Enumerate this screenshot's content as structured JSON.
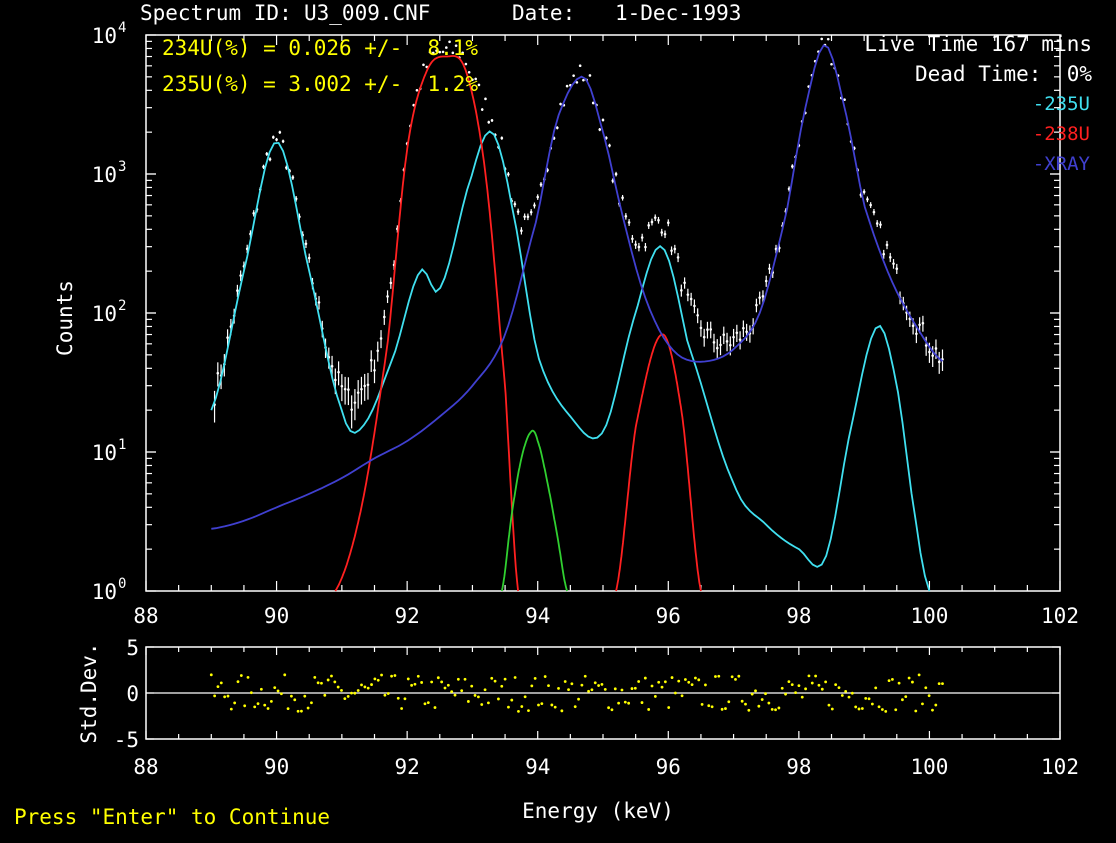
{
  "header": {
    "spectrum_label": "Spectrum ID:",
    "spectrum_id": "U3_009.CNF",
    "date_label": "Date:",
    "date": "1-Dec-1993"
  },
  "results": {
    "line1": "234U(%) = 0.026 +/-  8.1%",
    "line2": "235U(%) = 3.002 +/-  1.2%"
  },
  "info": {
    "live_time": "Live Time 167 mins",
    "dead_time": "Dead Time:  0%"
  },
  "legend": [
    "-235U",
    "-238U",
    "-XRAY"
  ],
  "colors": {
    "u235": "#40e0f0",
    "u238": "#ff2020",
    "xray": "#4040d0",
    "u234": "#30d030",
    "data": "#ffffff",
    "residual": "#ffff00",
    "text_yellow": "#ffff00"
  },
  "prompt": "Press \"Enter\" to Continue",
  "chart_data": [
    {
      "type": "line",
      "xlabel": "Energy (keV)",
      "ylabel": "Counts",
      "xlim": [
        88,
        102
      ],
      "ylim": [
        1,
        10000
      ],
      "yscale": "log",
      "x_ticks": [
        "88",
        "90",
        "92",
        "94",
        "96",
        "98",
        "100",
        "102"
      ],
      "y_ticks": [
        "10",
        "10",
        "10",
        "10",
        "10"
      ],
      "y_tick_exponents": [
        "0",
        "1",
        "2",
        "3",
        "4"
      ],
      "legend_position": "top-right",
      "series": [
        {
          "name": "235U",
          "x": [
            89.0,
            89.5,
            90.0,
            90.5,
            91.0,
            91.3,
            91.8,
            92.2,
            92.5,
            93.0,
            93.3,
            93.6,
            94.0,
            94.5,
            95.0,
            95.5,
            95.9,
            96.3,
            97.0,
            97.5,
            98.0,
            98.4,
            98.8,
            99.2,
            99.5,
            99.8,
            100.0
          ],
          "y": [
            20,
            200,
            1700,
            200,
            20,
            15,
            50,
            200,
            150,
            1000,
            2000,
            600,
            50,
            18,
            14,
            100,
            300,
            60,
            6,
            3,
            2,
            1.7,
            15,
            80,
            30,
            3,
            1
          ]
        },
        {
          "name": "238U",
          "x": [
            90.9,
            91.3,
            91.7,
            92.0,
            92.3,
            92.6,
            92.9,
            93.2,
            93.5,
            93.7,
            95.2,
            95.5,
            95.9,
            96.2,
            96.5
          ],
          "y": [
            1,
            4,
            60,
            1500,
            5500,
            7000,
            5500,
            1000,
            30,
            1,
            1,
            15,
            70,
            20,
            1
          ]
        },
        {
          "name": "XRAY",
          "x": [
            89.0,
            89.5,
            90.0,
            90.5,
            91.0,
            91.5,
            92.0,
            92.5,
            93.0,
            93.5,
            94.0,
            94.3,
            94.7,
            95.0,
            95.3,
            95.6,
            95.9,
            96.2,
            96.6,
            97.0,
            97.4,
            97.8,
            98.1,
            98.4,
            98.7,
            99.0,
            99.4,
            99.8,
            100.2
          ],
          "y": [
            2.8,
            3.2,
            4,
            5,
            6.5,
            9,
            12,
            18,
            30,
            70,
            500,
            2500,
            5000,
            2000,
            500,
            150,
            70,
            48,
            45,
            55,
            100,
            500,
            3000,
            8500,
            3000,
            600,
            180,
            80,
            45
          ]
        },
        {
          "name": "234U",
          "x": [
            93.45,
            93.6,
            93.75,
            93.9,
            94.0,
            94.15,
            94.3,
            94.45
          ],
          "y": [
            1,
            3.5,
            9,
            14,
            12,
            6,
            2.5,
            1
          ]
        }
      ]
    },
    {
      "type": "scatter",
      "ylabel": "Std.Dev.",
      "xlim": [
        88,
        102
      ],
      "ylim": [
        -5,
        5
      ],
      "x_ticks": [
        "88",
        "90",
        "92",
        "94",
        "96",
        "98",
        "100",
        "102"
      ],
      "y_ticks": [
        "5",
        "0",
        "-5"
      ],
      "x_range": [
        89.0,
        100.2
      ],
      "point_count": 220,
      "amplitude": 2.0
    }
  ]
}
